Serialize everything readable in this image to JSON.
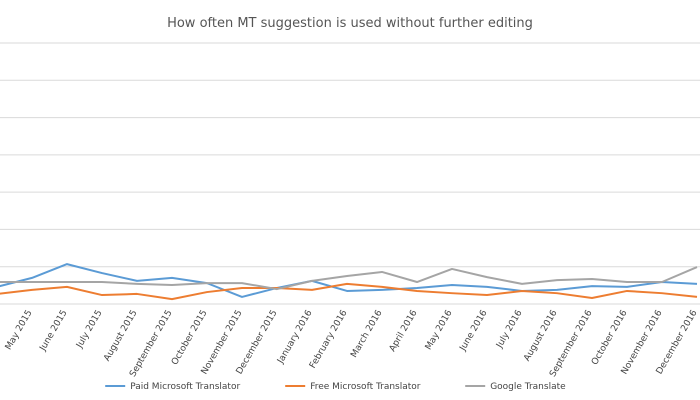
{
  "chart_data": {
    "type": "line",
    "title": "How often MT suggestion is used without further editing",
    "categories": [
      null,
      "May 2015",
      "June 2015",
      "July 2015",
      "August 2015",
      "September 2015",
      "October 2015",
      "November 2015",
      "December 2015",
      "January 2016",
      "February 2016",
      "March 2016",
      "April 2016",
      "May 2016",
      "June 2016",
      "July 2016",
      "August 2016",
      "September 2016",
      "October 2016",
      "November 2016",
      "December 2016"
    ],
    "series": [
      {
        "name": "Paid Microsoft Translator",
        "color": "#5b9bd5",
        "values": [
          4.6,
          7.0,
          10.7,
          8.3,
          6.2,
          7.0,
          5.6,
          1.9,
          4.3,
          6.2,
          3.5,
          3.8,
          4.3,
          5.1,
          4.6,
          3.5,
          3.8,
          4.8,
          4.6,
          5.9,
          5.4
        ]
      },
      {
        "name": "Free Microsoft Translator",
        "color": "#ed7d31",
        "values": [
          2.7,
          3.8,
          4.6,
          2.4,
          2.7,
          1.3,
          3.2,
          4.3,
          4.3,
          3.8,
          5.4,
          4.6,
          3.5,
          2.9,
          2.4,
          3.5,
          2.9,
          1.6,
          3.5,
          2.9,
          1.9
        ]
      },
      {
        "name": "Google Translate",
        "color": "#a5a5a5",
        "values": [
          5.9,
          5.9,
          5.9,
          5.9,
          5.4,
          5.1,
          5.6,
          5.6,
          4.0,
          6.2,
          7.5,
          8.6,
          5.9,
          9.4,
          7.2,
          5.4,
          6.4,
          6.7,
          5.9,
          5.9,
          9.9
        ]
      }
    ],
    "ylim": [
      0,
      70
    ],
    "yticks": [
      0,
      10,
      20,
      30,
      40,
      50,
      60,
      70
    ],
    "grid": true,
    "legend": "bottom"
  }
}
